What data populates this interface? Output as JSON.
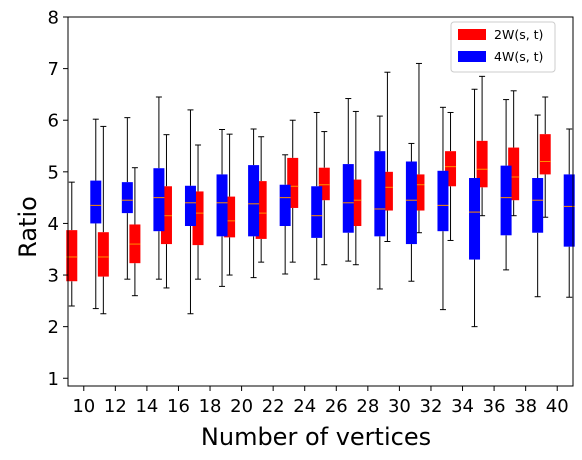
{
  "chart_data": {
    "type": "boxplot",
    "xlabel": "Number of vertices",
    "ylabel": "Ratio",
    "ylim": [
      0.85,
      8.0
    ],
    "yticks": [
      1,
      2,
      3,
      4,
      5,
      6,
      7,
      8
    ],
    "categories": [
      "10",
      "12",
      "14",
      "16",
      "18",
      "20",
      "22",
      "24",
      "26",
      "28",
      "30",
      "32",
      "34",
      "36",
      "38",
      "40"
    ],
    "grid": false,
    "legend_position": "top-right",
    "series": [
      {
        "name": "2W(s, t)",
        "color": "#ff0000",
        "median_color": "#ff8c00",
        "boxes": [
          {
            "whislo": 2.4,
            "q1": 2.88,
            "med": 3.35,
            "q3": 3.87,
            "whishi": 4.8
          },
          {
            "whislo": 2.25,
            "q1": 2.97,
            "med": 3.35,
            "q3": 3.83,
            "whishi": 5.88
          },
          {
            "whislo": 2.6,
            "q1": 3.23,
            "med": 3.6,
            "q3": 3.98,
            "whishi": 5.08
          },
          {
            "whislo": 2.75,
            "q1": 3.6,
            "med": 4.15,
            "q3": 4.72,
            "whishi": 5.72
          },
          {
            "whislo": 2.92,
            "q1": 3.58,
            "med": 4.2,
            "q3": 4.62,
            "whishi": 5.52
          },
          {
            "whislo": 3.0,
            "q1": 3.73,
            "med": 4.05,
            "q3": 4.52,
            "whishi": 5.73
          },
          {
            "whislo": 3.25,
            "q1": 3.7,
            "med": 4.2,
            "q3": 4.82,
            "whishi": 5.68
          },
          {
            "whislo": 3.25,
            "q1": 4.3,
            "med": 4.72,
            "q3": 5.27,
            "whishi": 6.0
          },
          {
            "whislo": 3.2,
            "q1": 4.45,
            "med": 4.75,
            "q3": 5.08,
            "whishi": 5.78
          },
          {
            "whislo": 3.2,
            "q1": 3.95,
            "med": 4.45,
            "q3": 4.85,
            "whishi": 6.17
          },
          {
            "whislo": 3.65,
            "q1": 4.25,
            "med": 4.7,
            "q3": 5.0,
            "whishi": 6.93
          },
          {
            "whislo": 3.82,
            "q1": 4.25,
            "med": 4.75,
            "q3": 4.95,
            "whishi": 7.1
          },
          {
            "whislo": 3.67,
            "q1": 4.72,
            "med": 5.1,
            "q3": 5.4,
            "whishi": 6.15
          },
          {
            "whislo": 4.15,
            "q1": 4.7,
            "med": 5.05,
            "q3": 5.6,
            "whishi": 6.85
          },
          {
            "whislo": 4.15,
            "q1": 4.45,
            "med": 4.9,
            "q3": 5.47,
            "whishi": 6.57
          },
          {
            "whislo": 4.12,
            "q1": 4.95,
            "med": 5.2,
            "q3": 5.73,
            "whishi": 6.45
          }
        ]
      },
      {
        "name": "4W(s, t)",
        "color": "#0000ff",
        "median_color": "#ff8c00",
        "boxes": [
          {
            "whislo": 2.35,
            "q1": 4.0,
            "med": 4.35,
            "q3": 4.83,
            "whishi": 6.02
          },
          {
            "whislo": 2.92,
            "q1": 4.2,
            "med": 4.45,
            "q3": 4.8,
            "whishi": 6.05
          },
          {
            "whislo": 2.92,
            "q1": 3.85,
            "med": 4.5,
            "q3": 5.07,
            "whishi": 6.45
          },
          {
            "whislo": 2.25,
            "q1": 3.95,
            "med": 4.4,
            "q3": 4.73,
            "whishi": 6.2
          },
          {
            "whislo": 2.78,
            "q1": 3.75,
            "med": 4.4,
            "q3": 4.95,
            "whishi": 5.82
          },
          {
            "whislo": 2.95,
            "q1": 3.75,
            "med": 4.38,
            "q3": 5.13,
            "whishi": 5.83
          },
          {
            "whislo": 3.02,
            "q1": 3.95,
            "med": 4.5,
            "q3": 4.75,
            "whishi": 5.33
          },
          {
            "whislo": 2.92,
            "q1": 3.72,
            "med": 4.15,
            "q3": 4.72,
            "whishi": 6.15
          },
          {
            "whislo": 3.27,
            "q1": 3.82,
            "med": 4.4,
            "q3": 5.15,
            "whishi": 6.42
          },
          {
            "whislo": 2.73,
            "q1": 3.75,
            "med": 4.28,
            "q3": 5.4,
            "whishi": 6.08
          },
          {
            "whislo": 2.88,
            "q1": 3.6,
            "med": 4.45,
            "q3": 5.2,
            "whishi": 5.55
          },
          {
            "whislo": 2.33,
            "q1": 3.85,
            "med": 4.35,
            "q3": 5.02,
            "whishi": 6.25
          },
          {
            "whislo": 2.0,
            "q1": 3.3,
            "med": 4.22,
            "q3": 4.88,
            "whishi": 6.6
          },
          {
            "whislo": 3.1,
            "q1": 3.77,
            "med": 4.5,
            "q3": 5.12,
            "whishi": 6.4
          },
          {
            "whislo": 2.58,
            "q1": 3.82,
            "med": 4.45,
            "q3": 4.88,
            "whishi": 6.1
          },
          {
            "whislo": 2.57,
            "q1": 3.55,
            "med": 4.33,
            "q3": 4.95,
            "whishi": 5.83
          }
        ]
      }
    ]
  }
}
